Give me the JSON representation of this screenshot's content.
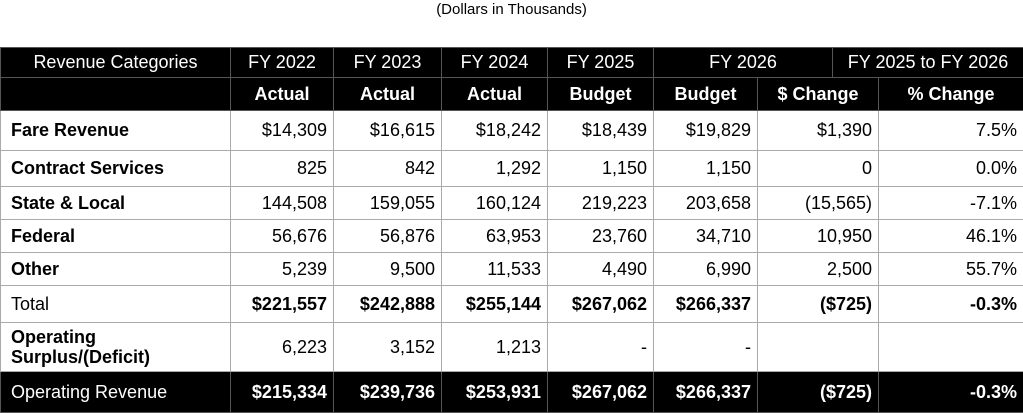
{
  "subtitle": "(Dollars in Thousands)",
  "header1": [
    "Revenue Categories",
    "FY 2022",
    "FY 2023",
    "FY 2024",
    "FY 2025",
    "FY 2026",
    "FY 2025 to FY 2026"
  ],
  "header2": [
    "",
    "Actual",
    "Actual",
    "Actual",
    "Budget",
    "Budget",
    "$ Change",
    "% Change"
  ],
  "rows": [
    {
      "label": "Fare Revenue",
      "values": [
        "$14,309",
        "$16,615",
        "$18,242",
        "$18,439",
        "$19,829",
        "$1,390",
        "7.5%"
      ]
    },
    {
      "label": "Contract Services",
      "values": [
        "825",
        "842",
        "1,292",
        "1,150",
        "1,150",
        "0",
        "0.0%"
      ]
    },
    {
      "label": "State & Local",
      "values": [
        "144,508",
        "159,055",
        "160,124",
        "219,223",
        "203,658",
        "(15,565)",
        "-7.1%"
      ]
    },
    {
      "label": "Federal",
      "values": [
        "56,676",
        "56,876",
        "63,953",
        "23,760",
        "34,710",
        "10,950",
        "46.1%"
      ]
    },
    {
      "label": "Other",
      "values": [
        "5,239",
        "9,500",
        "11,533",
        "4,490",
        "6,990",
        "2,500",
        "55.7%"
      ]
    }
  ],
  "total": {
    "label": "Total",
    "values": [
      "$221,557",
      "$242,888",
      "$255,144",
      "$267,062",
      "$266,337",
      "($725)",
      "-0.3%"
    ]
  },
  "surplus": {
    "label": "Operating Surplus/(Deficit)",
    "values": [
      "6,223",
      "3,152",
      "1,213",
      "-",
      "-",
      "",
      ""
    ]
  },
  "operating": {
    "label": "Operating Revenue",
    "values": [
      "$215,334",
      "$239,736",
      "$253,931",
      "$267,062",
      "$266,337",
      "($725)",
      "-0.3%"
    ]
  }
}
